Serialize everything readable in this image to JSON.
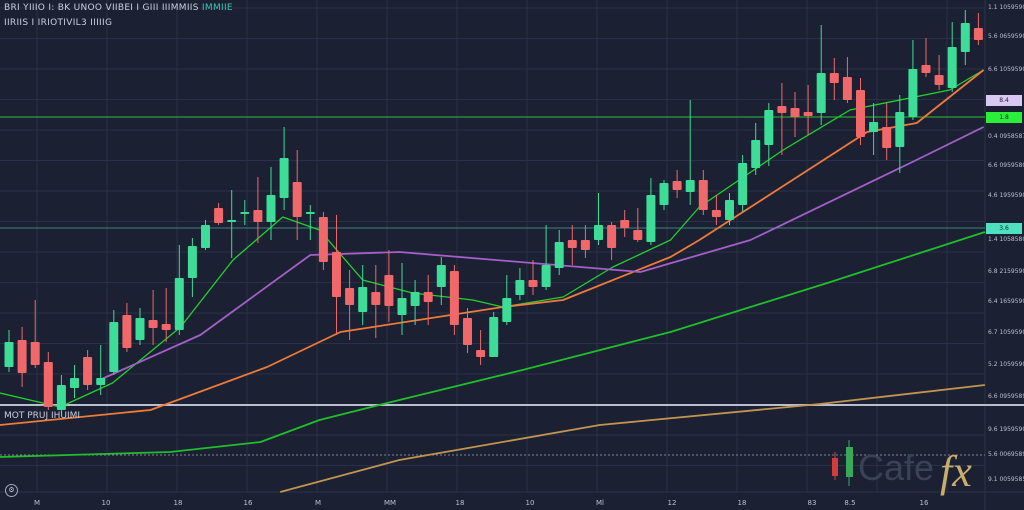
{
  "header": {
    "line1": "BRI YIIIO I: BK UNOO VIIBEI I GIII IIIMMIIS",
    "line1_accent": "IMMIIE",
    "line2": "IIRIIS I IRIOTIVIL3 IIIIIG"
  },
  "lower_pane_label": "MOT PRUJ IHUIMI",
  "watermark": {
    "text": "Cafe",
    "suffix": "fx"
  },
  "colors": {
    "background": "#1b2133",
    "grid": "#283147",
    "up_candle": "#3ddc97",
    "down_candle": "#f0686a",
    "fast_ma": "#22d12e",
    "mid_ma": "#f07a3a",
    "purple_ma": "#a45fc9",
    "slow_ma": "#1fbf2a",
    "long_ma": "#c2954f",
    "tag_teal": "#4fe0c0",
    "tag_green": "#2bf03a",
    "tag_purple": "#d9c8f2"
  },
  "chart_data": {
    "type": "candlestick",
    "title": "",
    "xlabel": "",
    "ylabel": "",
    "ylim": [
      -21.25,
      101.25
    ],
    "grid": true,
    "y_tick_labels": [
      "1.1 1059590",
      "5.6 0659590",
      "6.6 1059590",
      "0.4 0958587",
      "6.6 0959580",
      "4.6 1959590",
      "1.4 1058580",
      "6.8 2159590",
      "6.4 1659590",
      "6.7 1059590",
      "5.2 1059590",
      "6.6 0959589",
      "9.6 1959590",
      "5.6 0069589",
      "9.1 0059585"
    ],
    "x_tick_labels": [
      "M",
      "10",
      "18",
      "16",
      "M",
      "MM",
      "18",
      "10",
      "Ml",
      "12",
      "18",
      "83",
      "8.5",
      "16"
    ],
    "price_tags": [
      {
        "value": 76.25,
        "label": "8.4 0959590",
        "color": "#d9c8f2"
      },
      {
        "value": 72,
        "label": "1.8 0959590",
        "color": "#2bf03a"
      },
      {
        "value": 44.25,
        "label": "3.6 0959590",
        "color": "#4fe0c0"
      }
    ],
    "hlines": [
      {
        "value": 72,
        "color": "#2bd13a"
      },
      {
        "value": 44.25,
        "color": "#3f8f86"
      },
      {
        "value": 0,
        "color": "#c9cfdc"
      },
      {
        "value": -12.5,
        "color": "#8a90a0",
        "dotted": true
      }
    ],
    "candles": [
      [
        9.5,
        18.75,
        8.25,
        15.75
      ],
      [
        16.25,
        19.5,
        4.5,
        8
      ],
      [
        15.75,
        26.25,
        9.25,
        10
      ],
      [
        10.75,
        13.25,
        -1.25,
        -0.5
      ],
      [
        -1.25,
        7.5,
        -1.75,
        5
      ],
      [
        4.25,
        10,
        1.75,
        6.75
      ],
      [
        12,
        13.75,
        3.75,
        5
      ],
      [
        5,
        15,
        2.5,
        6.75
      ],
      [
        8.25,
        23.75,
        7.5,
        20.75
      ],
      [
        22.5,
        25.5,
        13.25,
        14.25
      ],
      [
        16.25,
        24.25,
        15,
        21.75
      ],
      [
        21.25,
        28.75,
        15,
        19.25
      ],
      [
        20.25,
        29.25,
        15.75,
        18.75
      ],
      [
        18.75,
        40,
        17.5,
        31.75
      ],
      [
        31.75,
        41.75,
        27,
        39.75
      ],
      [
        39.25,
        46.25,
        38.75,
        45
      ],
      [
        49.25,
        50.5,
        45,
        45.5
      ],
      [
        45.75,
        53.75,
        36.75,
        46.25
      ],
      [
        47.75,
        51.25,
        45,
        48.25
      ],
      [
        48.75,
        57,
        40.5,
        45.75
      ],
      [
        45.75,
        59.5,
        41.25,
        52.5
      ],
      [
        51.75,
        69.5,
        48.75,
        61.75
      ],
      [
        55.75,
        63.75,
        41.25,
        47
      ],
      [
        47.75,
        50,
        41.25,
        48.25
      ],
      [
        47,
        48.25,
        33.75,
        35.75
      ],
      [
        38.25,
        47.5,
        17.5,
        27
      ],
      [
        29.25,
        33.75,
        16.25,
        25
      ],
      [
        23.25,
        35,
        20,
        29.5
      ],
      [
        28.25,
        35,
        16.75,
        25
      ],
      [
        32.5,
        38.75,
        20.75,
        24.75
      ],
      [
        22.5,
        35.5,
        17.5,
        26.75
      ],
      [
        24.75,
        31.25,
        20,
        28.25
      ],
      [
        28.25,
        32.5,
        20,
        25.75
      ],
      [
        29.5,
        37,
        25,
        35
      ],
      [
        33.5,
        35,
        17.5,
        20
      ],
      [
        21.75,
        24.25,
        13,
        15
      ],
      [
        13.75,
        18.75,
        10,
        12
      ],
      [
        12,
        23.25,
        12,
        22
      ],
      [
        20.75,
        32.5,
        20,
        26.75
      ],
      [
        27.5,
        34.25,
        26.25,
        31.25
      ],
      [
        31.25,
        36.25,
        27.5,
        29.5
      ],
      [
        29.5,
        45,
        28.75,
        35
      ],
      [
        34.25,
        43.75,
        32.5,
        40.75
      ],
      [
        41.25,
        45,
        35,
        39.25
      ],
      [
        41.25,
        45,
        36.75,
        38.75
      ],
      [
        41.25,
        53,
        40,
        45
      ],
      [
        45,
        45.75,
        36.25,
        39.25
      ],
      [
        46.25,
        48.75,
        42,
        44.25
      ],
      [
        43.75,
        49.25,
        40.75,
        41.25
      ],
      [
        40.75,
        56.75,
        40,
        52.5
      ],
      [
        50,
        56.25,
        48.75,
        55.5
      ],
      [
        56,
        58.75,
        51.75,
        53.75
      ],
      [
        53.25,
        76.25,
        50,
        56.25
      ],
      [
        56.25,
        58.75,
        47.5,
        48.75
      ],
      [
        48.75,
        52.5,
        45,
        47
      ],
      [
        46.25,
        53,
        45,
        51.25
      ],
      [
        50,
        62.5,
        48.25,
        60.5
      ],
      [
        59.25,
        70.5,
        57.5,
        66.25
      ],
      [
        65,
        75.5,
        59.75,
        73.75
      ],
      [
        74.75,
        80.5,
        62.5,
        73
      ],
      [
        74.25,
        78.25,
        67,
        72
      ],
      [
        73.25,
        80,
        67.5,
        72.25
      ],
      [
        73,
        95,
        70,
        83
      ],
      [
        83,
        86.75,
        76.25,
        80.5
      ],
      [
        82,
        87,
        75.5,
        76.25
      ],
      [
        78.75,
        81.75,
        65,
        67
      ],
      [
        68.25,
        75.5,
        62.5,
        70.75
      ],
      [
        69.5,
        75.5,
        61.25,
        64.25
      ],
      [
        64.5,
        77.5,
        58,
        73.25
      ],
      [
        72,
        91.25,
        71.25,
        84
      ],
      [
        85,
        91.75,
        82,
        83
      ],
      [
        82.5,
        87.5,
        78.75,
        80
      ],
      [
        79.25,
        95.75,
        78.25,
        89.5
      ],
      [
        88.25,
        98.75,
        85,
        95.5
      ],
      [
        94.25,
        98,
        90,
        91.25
      ]
    ],
    "candle_format": [
      "open",
      "high",
      "low",
      "close"
    ],
    "lines": [
      {
        "color": "#22d12e",
        "points": [
          [
            0.3,
            3
          ],
          [
            4.9,
            -0.5
          ],
          [
            8.9,
            5.5
          ],
          [
            14.1,
            19.5
          ],
          [
            18.1,
            36.25
          ],
          [
            21.9,
            47
          ],
          [
            24.7,
            43.75
          ],
          [
            28,
            31.25
          ],
          [
            31.8,
            28
          ],
          [
            36.4,
            26.25
          ],
          [
            38.7,
            24.5
          ],
          [
            43.3,
            27
          ],
          [
            47.1,
            34.5
          ],
          [
            51.5,
            41.25
          ],
          [
            53.7,
            49.5
          ],
          [
            60.1,
            63.75
          ],
          [
            65.2,
            73.75
          ],
          [
            72.8,
            78.75
          ],
          [
            75.4,
            83.75
          ]
        ]
      },
      {
        "color": "#f07a3a",
        "points": [
          [
            0.3,
            -5
          ],
          [
            11.8,
            -1.25
          ],
          [
            20.7,
            9.5
          ],
          [
            26.3,
            18.25
          ],
          [
            38.7,
            24.5
          ],
          [
            43.3,
            26.25
          ],
          [
            51.5,
            37
          ],
          [
            53.7,
            41.25
          ],
          [
            66.5,
            68.25
          ],
          [
            70.3,
            70.5
          ],
          [
            75.4,
            83.75
          ]
        ]
      },
      {
        "color": "#a45fc9",
        "points": [
          [
            7.9,
            6.25
          ],
          [
            15.6,
            17.5
          ],
          [
            24,
            37.5
          ],
          [
            30.8,
            38.25
          ],
          [
            40,
            35.75
          ],
          [
            49.2,
            33.25
          ],
          [
            57.6,
            41.25
          ],
          [
            69.8,
            60.5
          ],
          [
            75.4,
            69.5
          ]
        ]
      },
      {
        "color": "#1fbf2a",
        "points": [
          [
            0.3,
            -13
          ],
          [
            13.3,
            -11.75
          ],
          [
            20.2,
            -9.25
          ],
          [
            24.7,
            -3.75
          ],
          [
            30.8,
            1.25
          ],
          [
            40.2,
            8.75
          ],
          [
            51.5,
            18.25
          ],
          [
            63.7,
            30.75
          ],
          [
            75.5,
            43.25
          ]
        ]
      },
      {
        "color": "#c2954f",
        "points": [
          [
            21.7,
            -21.75
          ],
          [
            30.8,
            -13.75
          ],
          [
            46.1,
            -5
          ],
          [
            62.9,
            0.25
          ],
          [
            75.5,
            5
          ]
        ]
      }
    ]
  }
}
